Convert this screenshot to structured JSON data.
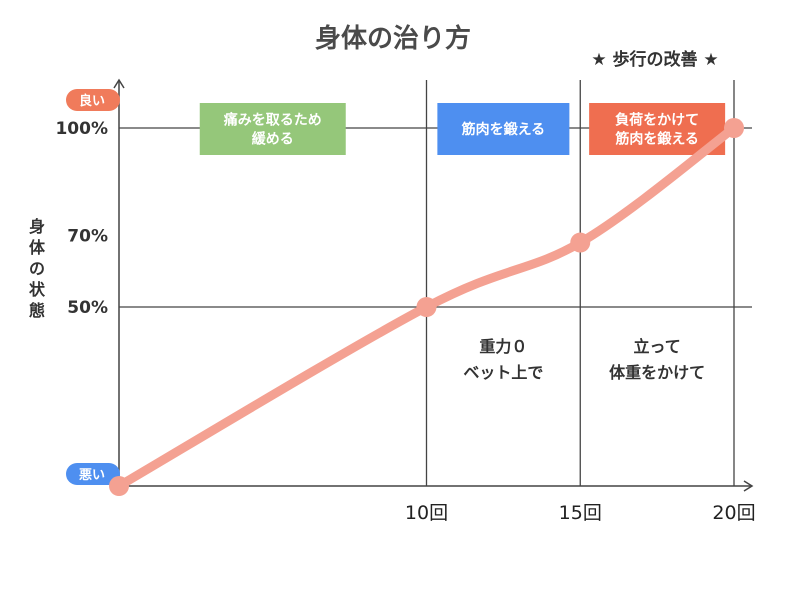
{
  "chart_data": {
    "type": "line",
    "title": "身体の治り方",
    "subtitle": "★ 歩行の改善 ★",
    "ylabel": "身体の状態",
    "xlabel": "",
    "xlim": [
      0,
      20
    ],
    "ylim": [
      0,
      100
    ],
    "x_ticks": [
      {
        "value": 10,
        "label": "10回"
      },
      {
        "value": 15,
        "label": "15回"
      },
      {
        "value": 20,
        "label": "20回"
      }
    ],
    "y_ticks": [
      {
        "value": 100,
        "label": "100%"
      },
      {
        "value": 70,
        "label": "70%"
      },
      {
        "value": 50,
        "label": "50%"
      }
    ],
    "y_scale_labels": {
      "top": {
        "label": "良い",
        "color": "#f07b5b"
      },
      "bottom": {
        "label": "悪い",
        "color": "#4e8ff0"
      }
    },
    "gridlines": {
      "x": [
        10,
        15
      ],
      "y": [
        50,
        100
      ]
    },
    "series": [
      {
        "color": "#f4a192",
        "points": [
          [
            0,
            0
          ],
          [
            10,
            50
          ],
          [
            15,
            68
          ],
          [
            20,
            100
          ]
        ]
      }
    ],
    "phase_boxes": [
      {
        "lines": [
          "痛みを取るため",
          "緩める"
        ],
        "color": "#95c77a"
      },
      {
        "lines": [
          "筋肉を鍛える"
        ],
        "color": "#4e8ff0"
      },
      {
        "lines": [
          "負荷をかけて",
          "筋肉を鍛える"
        ],
        "color": "#ef6e50"
      }
    ],
    "zone_notes": [
      {
        "lines": [
          "重力０",
          "ベット上で"
        ]
      },
      {
        "lines": [
          "立って",
          "体重をかけて"
        ]
      }
    ]
  }
}
